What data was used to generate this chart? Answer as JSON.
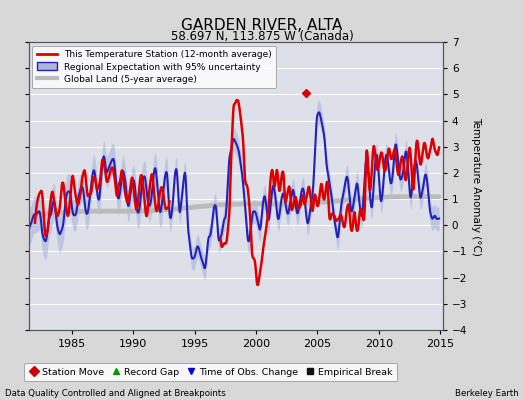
{
  "title": "GARDEN RIVER, ALTA",
  "subtitle": "58.697 N, 113.875 W (Canada)",
  "ylabel": "Temperature Anomaly (°C)",
  "xlabel_left": "Data Quality Controlled and Aligned at Breakpoints",
  "xlabel_right": "Berkeley Earth",
  "ylim": [
    -4,
    7
  ],
  "xlim": [
    1981.5,
    2015.2
  ],
  "yticks": [
    -4,
    -3,
    -2,
    -1,
    0,
    1,
    2,
    3,
    4,
    5,
    6,
    7
  ],
  "xticks": [
    1985,
    1990,
    1995,
    2000,
    2005,
    2010,
    2015
  ],
  "legend_labels": [
    "This Temperature Station (12-month average)",
    "Regional Expectation with 95% uncertainty",
    "Global Land (5-year average)"
  ],
  "bottom_legend": [
    {
      "label": "Station Move",
      "color": "#cc0000",
      "marker": "D"
    },
    {
      "label": "Record Gap",
      "color": "#009900",
      "marker": "^"
    },
    {
      "label": "Time of Obs. Change",
      "color": "#0000cc",
      "marker": "v"
    },
    {
      "label": "Empirical Break",
      "color": "#111111",
      "marker": "s"
    }
  ],
  "fig_bg": "#d8d8d8",
  "plot_bg": "#dde0e8",
  "grid_color": "#ffffff",
  "red_color": "#dd0000",
  "blue_color": "#2222bb",
  "blue_band_color": "#aab4dd",
  "gray_color": "#bbbbbb",
  "station_marker_x": 2004.1,
  "station_marker_y": 5.05
}
